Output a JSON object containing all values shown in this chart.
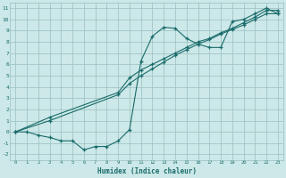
{
  "xlabel": "Humidex (Indice chaleur)",
  "bg_color": "#cce8e8",
  "grid_color": "#9bbfbf",
  "line_color": "#1a6b6b",
  "xlim": [
    -0.5,
    23.5
  ],
  "ylim": [
    -2.5,
    11.5
  ],
  "xticks": [
    0,
    1,
    2,
    3,
    4,
    5,
    6,
    7,
    8,
    9,
    10,
    11,
    12,
    13,
    14,
    15,
    16,
    17,
    18,
    19,
    20,
    21,
    22,
    23
  ],
  "yticks": [
    -2,
    -1,
    0,
    1,
    2,
    3,
    4,
    5,
    6,
    7,
    8,
    9,
    10,
    11
  ],
  "line1_x": [
    0,
    1,
    2,
    3,
    4,
    5,
    6,
    7,
    8,
    9,
    10,
    11,
    12,
    13,
    14,
    15,
    16,
    17,
    18,
    19,
    20,
    21,
    22,
    23
  ],
  "line1_y": [
    0.0,
    0.0,
    -0.3,
    -0.5,
    -0.8,
    -0.8,
    -1.6,
    -1.3,
    -1.3,
    -0.8,
    0.2,
    6.3,
    8.5,
    9.3,
    9.2,
    8.3,
    7.8,
    7.5,
    7.5,
    9.8,
    10.0,
    10.5,
    11.0,
    10.5
  ],
  "line2_x": [
    0,
    3,
    9,
    10,
    11,
    12,
    13,
    14,
    15,
    16,
    17,
    18,
    19,
    20,
    21,
    22,
    23
  ],
  "line2_y": [
    0.0,
    1.0,
    3.3,
    4.3,
    5.0,
    5.6,
    6.2,
    6.8,
    7.3,
    7.8,
    8.2,
    8.7,
    9.1,
    9.5,
    10.0,
    10.5,
    10.5
  ],
  "line3_x": [
    0,
    3,
    9,
    10,
    11,
    12,
    13,
    14,
    15,
    16,
    17,
    18,
    19,
    20,
    21,
    22,
    23
  ],
  "line3_y": [
    0.0,
    1.3,
    3.5,
    4.8,
    5.5,
    6.0,
    6.5,
    7.0,
    7.5,
    8.0,
    8.3,
    8.8,
    9.2,
    9.7,
    10.2,
    10.8,
    10.8
  ]
}
